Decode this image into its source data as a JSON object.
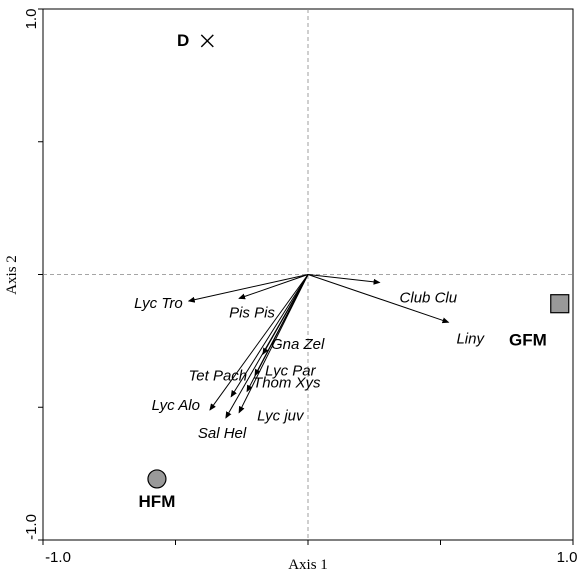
{
  "chart_data": {
    "type": "scatter",
    "title": "",
    "xlabel": "Axis 1",
    "ylabel": "Axis 2",
    "xlim": [
      -1.0,
      1.0
    ],
    "ylim": [
      -1.0,
      1.0
    ],
    "x_tick_labels": [
      {
        "value": -1.0,
        "label": "-1.0"
      },
      {
        "value": 1.0,
        "label": "1.0"
      }
    ],
    "y_tick_labels": [
      {
        "value": 1.0,
        "label": "1.0"
      },
      {
        "value": -1.0,
        "label": "-1.0"
      }
    ],
    "minor_ticks": [
      -0.5,
      0.5
    ],
    "zero_lines": true,
    "grid": false,
    "arrow_color": "#000000",
    "species_vectors": [
      {
        "name": "Lyc Tro",
        "x": -0.45,
        "y": -0.1
      },
      {
        "name": "Pis Pis",
        "x": -0.26,
        "y": -0.09
      },
      {
        "name": "Club Clu",
        "x": 0.27,
        "y": -0.03
      },
      {
        "name": "Liny",
        "x": 0.53,
        "y": -0.18
      },
      {
        "name": "Gna Zel",
        "x": -0.17,
        "y": -0.3
      },
      {
        "name": "Lyc Par",
        "x": -0.2,
        "y": -0.38
      },
      {
        "name": "Thom Xys",
        "x": -0.23,
        "y": -0.44
      },
      {
        "name": "Tet Pach",
        "x": -0.29,
        "y": -0.46
      },
      {
        "name": "Lyc Alo",
        "x": -0.37,
        "y": -0.51
      },
      {
        "name": "Sal Hel",
        "x": -0.31,
        "y": -0.54
      },
      {
        "name": "Lyc juv",
        "x": -0.26,
        "y": -0.52
      }
    ],
    "sites": [
      {
        "name": "D",
        "marker": "cross",
        "x": -0.38,
        "y": 0.88,
        "color": "#000000"
      },
      {
        "name": "GFM",
        "marker": "square",
        "x": 0.95,
        "y": -0.11,
        "color": "#999999"
      },
      {
        "name": "HFM",
        "marker": "circle",
        "x": -0.57,
        "y": -0.77,
        "color": "#999999"
      }
    ]
  }
}
